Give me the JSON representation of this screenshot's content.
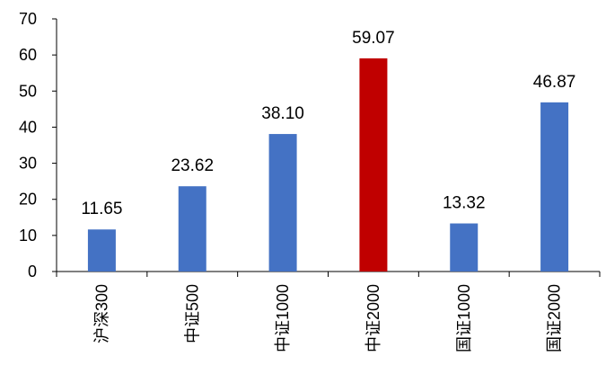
{
  "chart_data": {
    "type": "bar",
    "title": "",
    "xlabel": "",
    "ylabel": "",
    "categories": [
      "沪深300",
      "中证500",
      "中证1000",
      "中证2000",
      "国证1000",
      "国证2000"
    ],
    "values": [
      11.65,
      23.62,
      38.1,
      59.07,
      13.32,
      46.87
    ],
    "value_labels": [
      "11.65",
      "23.62",
      "38.10",
      "59.07",
      "13.32",
      "46.87"
    ],
    "ylim": [
      0,
      70
    ],
    "yticks": [
      0,
      10,
      20,
      30,
      40,
      50,
      60,
      70
    ],
    "grid": false,
    "legend": "none",
    "colors": {
      "default_bar": "#4472C4",
      "highlight_bar": "#C00000",
      "axis": "#000000",
      "text": "#000000"
    },
    "highlight_index": 3
  }
}
